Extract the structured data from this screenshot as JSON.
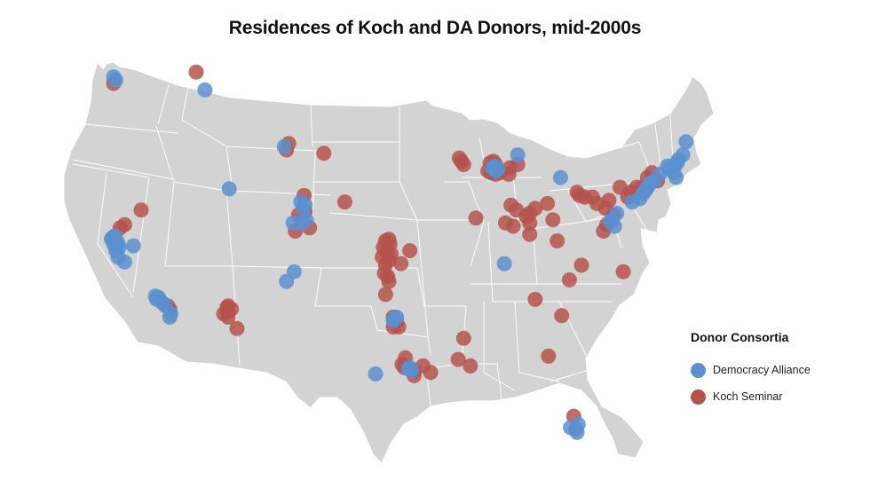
{
  "title": "Residences of Koch and DA Donors, mid-2000s",
  "legend": {
    "title": "Donor Consortia",
    "items": [
      {
        "label": "Democracy Alliance",
        "color": "#5b8fd0"
      },
      {
        "label": "Koch Seminar",
        "color": "#b5524c"
      }
    ]
  },
  "colors": {
    "land": "#d3d3d3",
    "border": "#ffffff"
  },
  "series": {
    "democracy_alliance": {
      "color": "#5b8fd0",
      "points": [
        [
          -122.3,
          47.7
        ],
        [
          -122.1,
          47.5
        ],
        [
          -114.0,
          46.9
        ],
        [
          -106.8,
          43.4
        ],
        [
          -111.8,
          40.8
        ],
        [
          -104.9,
          39.8
        ],
        [
          -105.1,
          39.6
        ],
        [
          -105.3,
          40.0
        ],
        [
          -104.8,
          38.9
        ],
        [
          -105.2,
          38.7
        ],
        [
          -106.0,
          38.7
        ],
        [
          -106.6,
          35.1
        ],
        [
          -105.9,
          35.7
        ],
        [
          -122.4,
          37.8
        ],
        [
          -122.5,
          37.7
        ],
        [
          -122.2,
          37.9
        ],
        [
          -121.9,
          37.4
        ],
        [
          -122.3,
          37.4
        ],
        [
          -122.0,
          37.6
        ],
        [
          -121.8,
          37.2
        ],
        [
          -122.1,
          37.0
        ],
        [
          -120.5,
          37.3
        ],
        [
          -121.9,
          36.6
        ],
        [
          -121.3,
          36.3
        ],
        [
          -118.4,
          34.0
        ],
        [
          -118.2,
          34.1
        ],
        [
          -118.5,
          34.2
        ],
        [
          -117.9,
          33.8
        ],
        [
          -117.6,
          33.6
        ],
        [
          -117.2,
          32.9
        ],
        [
          -117.1,
          33.1
        ],
        [
          -96.8,
          32.8
        ],
        [
          -96.6,
          32.9
        ],
        [
          -96.9,
          32.7
        ],
        [
          -95.4,
          29.8
        ],
        [
          -95.5,
          29.7
        ],
        [
          -95.2,
          29.6
        ],
        [
          -98.5,
          29.4
        ],
        [
          -87.6,
          41.9
        ],
        [
          -87.9,
          42.1
        ],
        [
          -87.4,
          42.0
        ],
        [
          -87.7,
          42.2
        ],
        [
          -85.6,
          42.9
        ],
        [
          -81.7,
          41.5
        ],
        [
          -86.8,
          36.2
        ],
        [
          -71.1,
          42.4
        ],
        [
          -71.3,
          42.3
        ],
        [
          -71.0,
          42.6
        ],
        [
          -70.3,
          43.7
        ],
        [
          -70.6,
          42.9
        ],
        [
          -71.8,
          42.0
        ],
        [
          -73.5,
          41.2
        ],
        [
          -73.9,
          40.8
        ],
        [
          -74.0,
          40.7
        ],
        [
          -73.7,
          41.0
        ],
        [
          -73.2,
          41.3
        ],
        [
          -74.2,
          40.5
        ],
        [
          -74.5,
          40.2
        ],
        [
          -75.2,
          40.0
        ],
        [
          -76.6,
          39.3
        ],
        [
          -77.0,
          38.9
        ],
        [
          -77.2,
          38.8
        ],
        [
          -76.8,
          38.5
        ],
        [
          -72.7,
          41.7
        ],
        [
          -71.4,
          41.8
        ],
        [
          -72.0,
          42.2
        ],
        [
          -71.2,
          41.5
        ],
        [
          -80.3,
          26.0
        ],
        [
          -80.1,
          26.3
        ],
        [
          -80.2,
          25.8
        ],
        [
          -80.8,
          26.1
        ]
      ]
    },
    "koch_seminar": {
      "color": "#b5524c",
      "points": [
        [
          -122.3,
          47.3
        ],
        [
          -114.8,
          48.0
        ],
        [
          -106.4,
          43.6
        ],
        [
          -106.6,
          43.2
        ],
        [
          -103.2,
          43.0
        ],
        [
          -119.8,
          39.5
        ],
        [
          -121.3,
          38.6
        ],
        [
          -121.7,
          38.4
        ],
        [
          -101.3,
          40.0
        ],
        [
          -105.0,
          40.4
        ],
        [
          -104.9,
          39.4
        ],
        [
          -105.5,
          39.2
        ],
        [
          -104.5,
          38.4
        ],
        [
          -105.8,
          38.2
        ],
        [
          -117.4,
          33.6
        ],
        [
          -117.2,
          33.4
        ],
        [
          -112.0,
          33.5
        ],
        [
          -111.9,
          33.6
        ],
        [
          -111.6,
          33.4
        ],
        [
          -111.9,
          33.2
        ],
        [
          -112.3,
          33.1
        ],
        [
          -111.9,
          32.9
        ],
        [
          -111.1,
          32.2
        ],
        [
          -97.3,
          37.7
        ],
        [
          -97.6,
          37.6
        ],
        [
          -97.2,
          37.4
        ],
        [
          -97.8,
          37.2
        ],
        [
          -97.5,
          36.9
        ],
        [
          -97.1,
          36.8
        ],
        [
          -97.9,
          36.6
        ],
        [
          -97.3,
          36.4
        ],
        [
          -97.6,
          36.1
        ],
        [
          -96.2,
          36.2
        ],
        [
          -95.4,
          37.0
        ],
        [
          -97.4,
          35.4
        ],
        [
          -97.7,
          35.6
        ],
        [
          -97.3,
          35.1
        ],
        [
          -97.6,
          34.3
        ],
        [
          -96.9,
          32.9
        ],
        [
          -96.6,
          32.6
        ],
        [
          -96.4,
          32.3
        ],
        [
          -96.9,
          32.3
        ],
        [
          -95.8,
          30.4
        ],
        [
          -96.1,
          30.0
        ],
        [
          -95.9,
          29.8
        ],
        [
          -95.0,
          29.6
        ],
        [
          -95.0,
          29.3
        ],
        [
          -93.5,
          29.5
        ],
        [
          -94.2,
          29.9
        ],
        [
          -91.0,
          30.3
        ],
        [
          -89.9,
          29.9
        ],
        [
          -90.5,
          31.6
        ],
        [
          -90.7,
          42.5
        ],
        [
          -90.5,
          42.3
        ],
        [
          -90.9,
          42.7
        ],
        [
          -88.1,
          42.4
        ],
        [
          -87.8,
          42.5
        ],
        [
          -87.6,
          42.3
        ],
        [
          -87.8,
          42.0
        ],
        [
          -87.6,
          41.7
        ],
        [
          -88.3,
          41.9
        ],
        [
          -88.0,
          41.8
        ],
        [
          -87.2,
          41.8
        ],
        [
          -86.4,
          41.7
        ],
        [
          -86.3,
          42.1
        ],
        [
          -85.6,
          42.3
        ],
        [
          -89.4,
          39.0
        ],
        [
          -86.2,
          39.8
        ],
        [
          -85.7,
          39.5
        ],
        [
          -86.0,
          38.5
        ],
        [
          -86.7,
          38.7
        ],
        [
          -84.8,
          39.1
        ],
        [
          -84.5,
          38.7
        ],
        [
          -84.5,
          39.3
        ],
        [
          -84.0,
          39.6
        ],
        [
          -82.9,
          39.9
        ],
        [
          -82.4,
          38.9
        ],
        [
          -84.5,
          38.0
        ],
        [
          -82.0,
          37.6
        ],
        [
          -80.2,
          40.6
        ],
        [
          -80.0,
          40.4
        ],
        [
          -79.5,
          40.3
        ],
        [
          -78.8,
          40.3
        ],
        [
          -78.4,
          39.9
        ],
        [
          -77.3,
          40.1
        ],
        [
          -77.6,
          39.6
        ],
        [
          -76.9,
          39.2
        ],
        [
          -77.5,
          38.6
        ],
        [
          -77.8,
          38.2
        ],
        [
          -76.3,
          40.9
        ],
        [
          -75.6,
          40.3
        ],
        [
          -75.3,
          40.6
        ],
        [
          -74.8,
          40.9
        ],
        [
          -73.8,
          41.5
        ],
        [
          -74.3,
          40.9
        ],
        [
          -73.4,
          41.8
        ],
        [
          -72.9,
          41.3
        ],
        [
          -79.8,
          36.1
        ],
        [
          -80.9,
          35.2
        ],
        [
          -76.0,
          35.7
        ],
        [
          -81.6,
          33.0
        ],
        [
          -82.8,
          30.5
        ],
        [
          -80.5,
          26.8
        ],
        [
          -84.0,
          34.0
        ]
      ]
    }
  }
}
